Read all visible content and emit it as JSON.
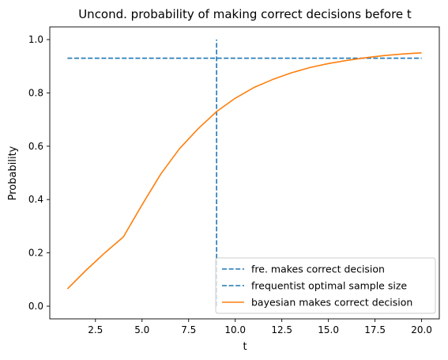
{
  "chart_data": {
    "type": "line",
    "title": "Uncond. probability of making correct decisions before t",
    "xlabel": "t",
    "ylabel": "Probability",
    "xlim": [
      0.05,
      20.95
    ],
    "ylim": [
      -0.0475,
      1.0475
    ],
    "xticks": [
      2.5,
      5.0,
      7.5,
      10.0,
      12.5,
      15.0,
      17.5,
      20.0
    ],
    "xtick_labels": [
      "2.5",
      "5.0",
      "7.5",
      "10.0",
      "12.5",
      "15.0",
      "17.5",
      "20.0"
    ],
    "yticks": [
      0.0,
      0.2,
      0.4,
      0.6,
      0.8,
      1.0
    ],
    "ytick_labels": [
      "0.0",
      "0.2",
      "0.4",
      "0.6",
      "0.8",
      "1.0"
    ],
    "grid": false,
    "legend_position": "lower-right",
    "series": [
      {
        "name": "fre. makes correct decision",
        "color": "#1f77b4",
        "style": "dashed",
        "x": [
          1,
          20
        ],
        "y": [
          0.93,
          0.93
        ]
      },
      {
        "name": "frequentist optimal sample size",
        "color": "#1f77b4",
        "style": "dashed",
        "x": [
          9,
          9
        ],
        "y": [
          0.0,
          1.0
        ]
      },
      {
        "name": "bayesian makes correct decision",
        "color": "#ff7f0e",
        "style": "solid",
        "x": [
          1,
          2,
          3,
          4,
          5,
          6,
          7,
          8,
          9,
          10,
          11,
          12,
          13,
          14,
          15,
          16,
          17,
          18,
          19,
          20
        ],
        "y": [
          0.065,
          0.135,
          0.2,
          0.26,
          0.38,
          0.495,
          0.59,
          0.665,
          0.73,
          0.78,
          0.82,
          0.85,
          0.875,
          0.895,
          0.91,
          0.922,
          0.932,
          0.94,
          0.946,
          0.95
        ]
      }
    ]
  }
}
